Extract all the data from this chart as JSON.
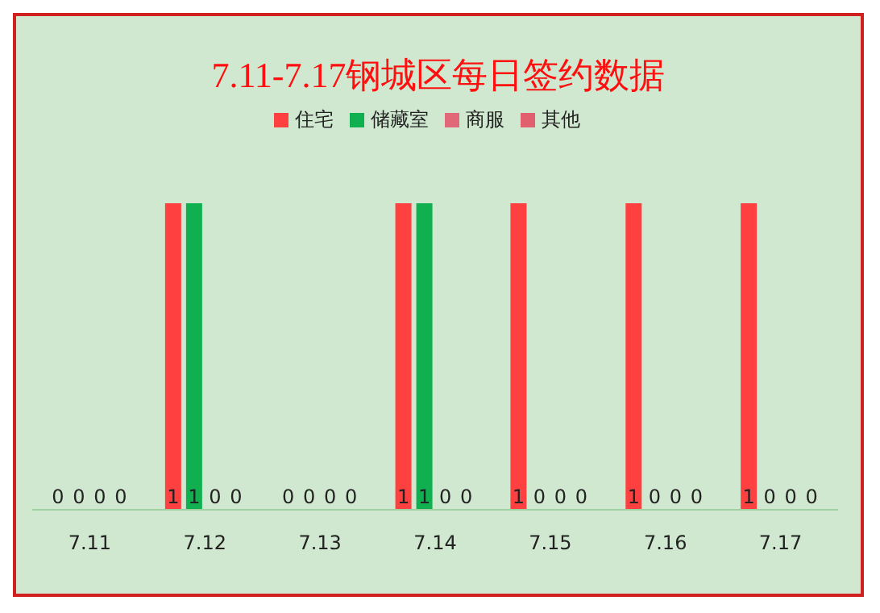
{
  "chart_data": {
    "type": "bar",
    "title": "7.11-7.17钢城区每日签约数据",
    "categories": [
      "7.11",
      "7.12",
      "7.13",
      "7.14",
      "7.15",
      "7.16",
      "7.17"
    ],
    "series": [
      {
        "name": "住宅",
        "color": "#ff4040",
        "values": [
          0,
          1,
          0,
          1,
          1,
          1,
          1
        ]
      },
      {
        "name": "储藏室",
        "color": "#10b050",
        "values": [
          0,
          1,
          0,
          1,
          0,
          0,
          0
        ]
      },
      {
        "name": "商服",
        "color": "#e06878",
        "values": [
          0,
          0,
          0,
          0,
          0,
          0,
          0
        ]
      },
      {
        "name": "其他",
        "color": "#e06070",
        "values": [
          0,
          0,
          0,
          0,
          0,
          0,
          0
        ]
      }
    ],
    "data_labels": true,
    "legend": "top",
    "grid": false
  }
}
